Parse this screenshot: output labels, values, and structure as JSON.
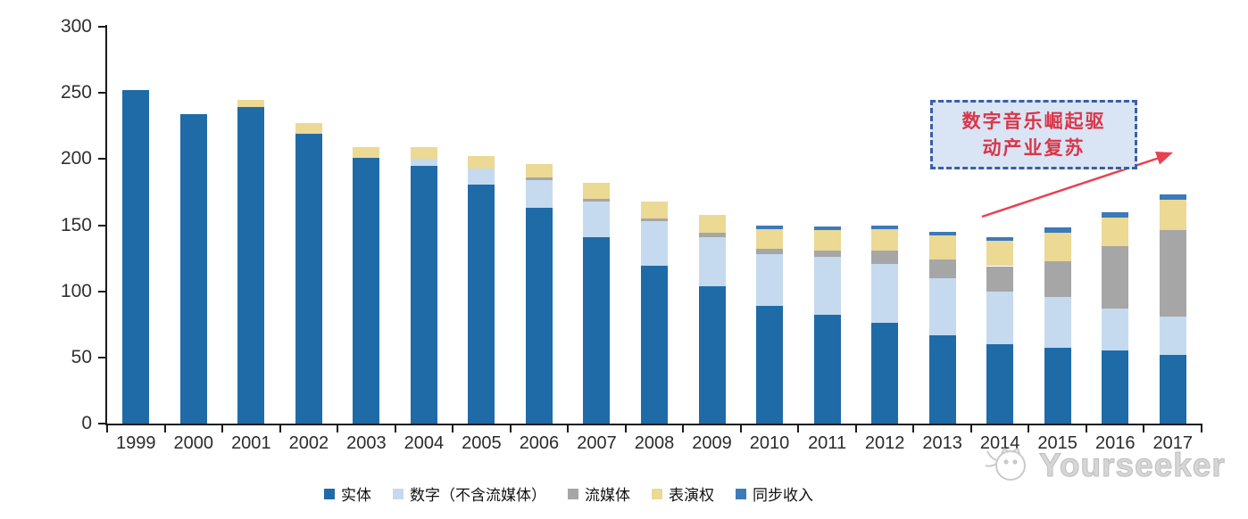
{
  "palette": {
    "physical": "#1F6BA8",
    "digital": "#C5DAEE",
    "streaming": "#A6A6A6",
    "performance": "#EBD994",
    "sync": "#3D7AB8",
    "axis": "#1a1a1a",
    "annotation_border": "#3B5EA6",
    "annotation_fill": "#D9E5F5",
    "annotation_text": "#D93649",
    "arrow": "#E8414F",
    "watermark": "#BDBDBD"
  },
  "chart_data": {
    "type": "bar",
    "stacked": true,
    "title": "",
    "xlabel": "",
    "ylabel": "",
    "categories": [
      "1999",
      "2000",
      "2001",
      "2002",
      "2003",
      "2004",
      "2005",
      "2006",
      "2007",
      "2008",
      "2009",
      "2010",
      "2011",
      "2012",
      "2013",
      "2014",
      "2015",
      "2016",
      "2017"
    ],
    "series": [
      {
        "name": "实体",
        "color": "physical",
        "values": [
          252,
          234,
          239,
          219,
          201,
          195,
          181,
          163,
          141,
          119,
          104,
          89,
          82,
          76,
          67,
          60,
          57,
          55,
          52
        ]
      },
      {
        "name": "数字（不含流媒体）",
        "color": "digital",
        "values": [
          0,
          0,
          0,
          0,
          0,
          5,
          12,
          21,
          27,
          34,
          37,
          39,
          44,
          45,
          43,
          40,
          39,
          32,
          29
        ]
      },
      {
        "name": "流媒体",
        "color": "streaming",
        "values": [
          0,
          0,
          0,
          0,
          0,
          0,
          0,
          2,
          2,
          2,
          3,
          4,
          5,
          10,
          14,
          19,
          27,
          47,
          65
        ]
      },
      {
        "name": "表演权",
        "color": "performance",
        "values": [
          0,
          0,
          6,
          8,
          8,
          9,
          9,
          10,
          12,
          13,
          14,
          15,
          15,
          16,
          18,
          19,
          21,
          22,
          23
        ]
      },
      {
        "name": "同步收入",
        "color": "sync",
        "values": [
          0,
          0,
          0,
          0,
          0,
          0,
          0,
          0,
          0,
          0,
          0,
          3,
          3,
          3,
          3,
          3,
          4,
          4,
          4
        ]
      }
    ],
    "ylim": [
      0,
      300
    ],
    "yticks": [
      0,
      50,
      100,
      150,
      200,
      250,
      300
    ],
    "grid": false,
    "legend_position": "bottom"
  },
  "legend": {
    "items": [
      {
        "label": "实体",
        "color": "physical"
      },
      {
        "label": "数字（不含流媒体）",
        "color": "digital"
      },
      {
        "label": "流媒体",
        "color": "streaming"
      },
      {
        "label": "表演权",
        "color": "performance"
      },
      {
        "label": "同步收入",
        "color": "sync"
      }
    ]
  },
  "annotation": {
    "full_text": "数字音乐崛起驱动产业复苏",
    "line1": "数字音乐崛起驱",
    "line2": "动产业复苏"
  },
  "watermark": {
    "text": "Yourseeker"
  }
}
